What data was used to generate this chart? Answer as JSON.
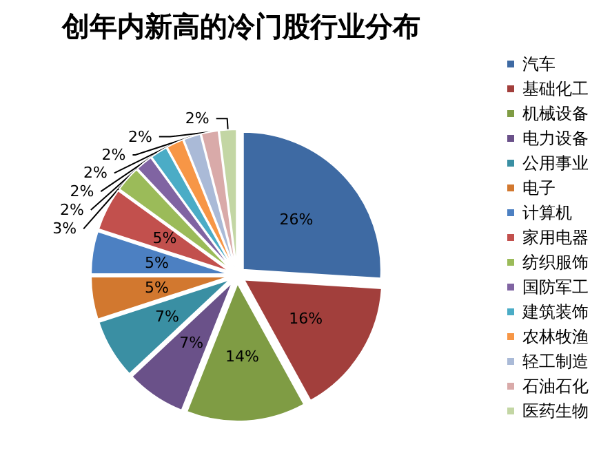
{
  "chart_data": {
    "type": "pie",
    "title": "创年内新高的冷门股行业分布",
    "categories": [
      "汽车",
      "基础化工",
      "机械设备",
      "电力设备",
      "公用事业",
      "电子",
      "计算机",
      "家用电器",
      "纺织服饰",
      "国防军工",
      "建筑装饰",
      "农林牧渔",
      "轻工制造",
      "石油石化",
      "医药生物"
    ],
    "values": [
      26,
      16,
      14,
      7,
      7,
      5,
      5,
      5,
      3,
      2,
      2,
      2,
      2,
      2,
      2
    ],
    "value_labels": [
      "26%",
      "16%",
      "14%",
      "7%",
      "7%",
      "5%",
      "5%",
      "5%",
      "3%",
      "2%",
      "2%",
      "2%",
      "2%",
      "2%",
      "2%"
    ],
    "colors": [
      "#3e6aa3",
      "#a23f3c",
      "#7f9c44",
      "#6a5189",
      "#3a8fa3",
      "#d2782f",
      "#4c80c2",
      "#c2504d",
      "#9bbb59",
      "#8064a2",
      "#4bacc6",
      "#f79646",
      "#aabad7",
      "#d9aaa9",
      "#c3d6a4"
    ],
    "legend": "right"
  }
}
